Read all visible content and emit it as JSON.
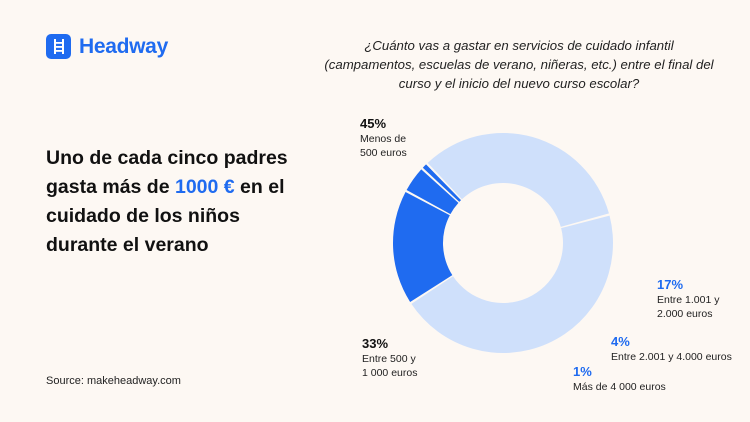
{
  "brand": {
    "name": "Headway",
    "color": "#1f6bf0"
  },
  "headline": {
    "before": "Uno de cada cinco padres gasta más de ",
    "highlight": "1000 €",
    "after": " en el cuidado de los niños durante el verano"
  },
  "source": "Source: makeheadway.com",
  "chart_data": {
    "type": "pie",
    "title": "¿Cuánto vas a gastar en servicios de cuidado infantil (campamentos, escuelas de verano, niñeras, etc.) entre el final del curso y el inicio del nuevo curso escolar?",
    "donut": true,
    "slices": [
      {
        "pct_label": "45%",
        "label": "Menos de 500 euros",
        "label_lines": [
          "Menos de",
          "500 euros"
        ],
        "value": 45,
        "color": "#cfe0fb"
      },
      {
        "pct_label": "17%",
        "label": "Entre 1.001 y 2.000 euros",
        "label_lines": [
          "Entre 1.001 y",
          "2.000 euros"
        ],
        "value": 17,
        "color": "#1f6bf0"
      },
      {
        "pct_label": "4%",
        "label": "Entre 2.001 y 4.000 euros",
        "label_lines": [
          "Entre 2.001 y 4.000 euros"
        ],
        "value": 4,
        "color": "#1f6bf0"
      },
      {
        "pct_label": "1%",
        "label": "Más de 4 000 euros",
        "label_lines": [
          "Más de 4 000 euros"
        ],
        "value": 1,
        "color": "#1f6bf0"
      },
      {
        "pct_label": "33%",
        "label": "Entre 500 y 1 000 euros",
        "label_lines": [
          "Entre 500 y",
          "1 000 euros"
        ],
        "value": 33,
        "color": "#cfe0fb"
      }
    ]
  }
}
